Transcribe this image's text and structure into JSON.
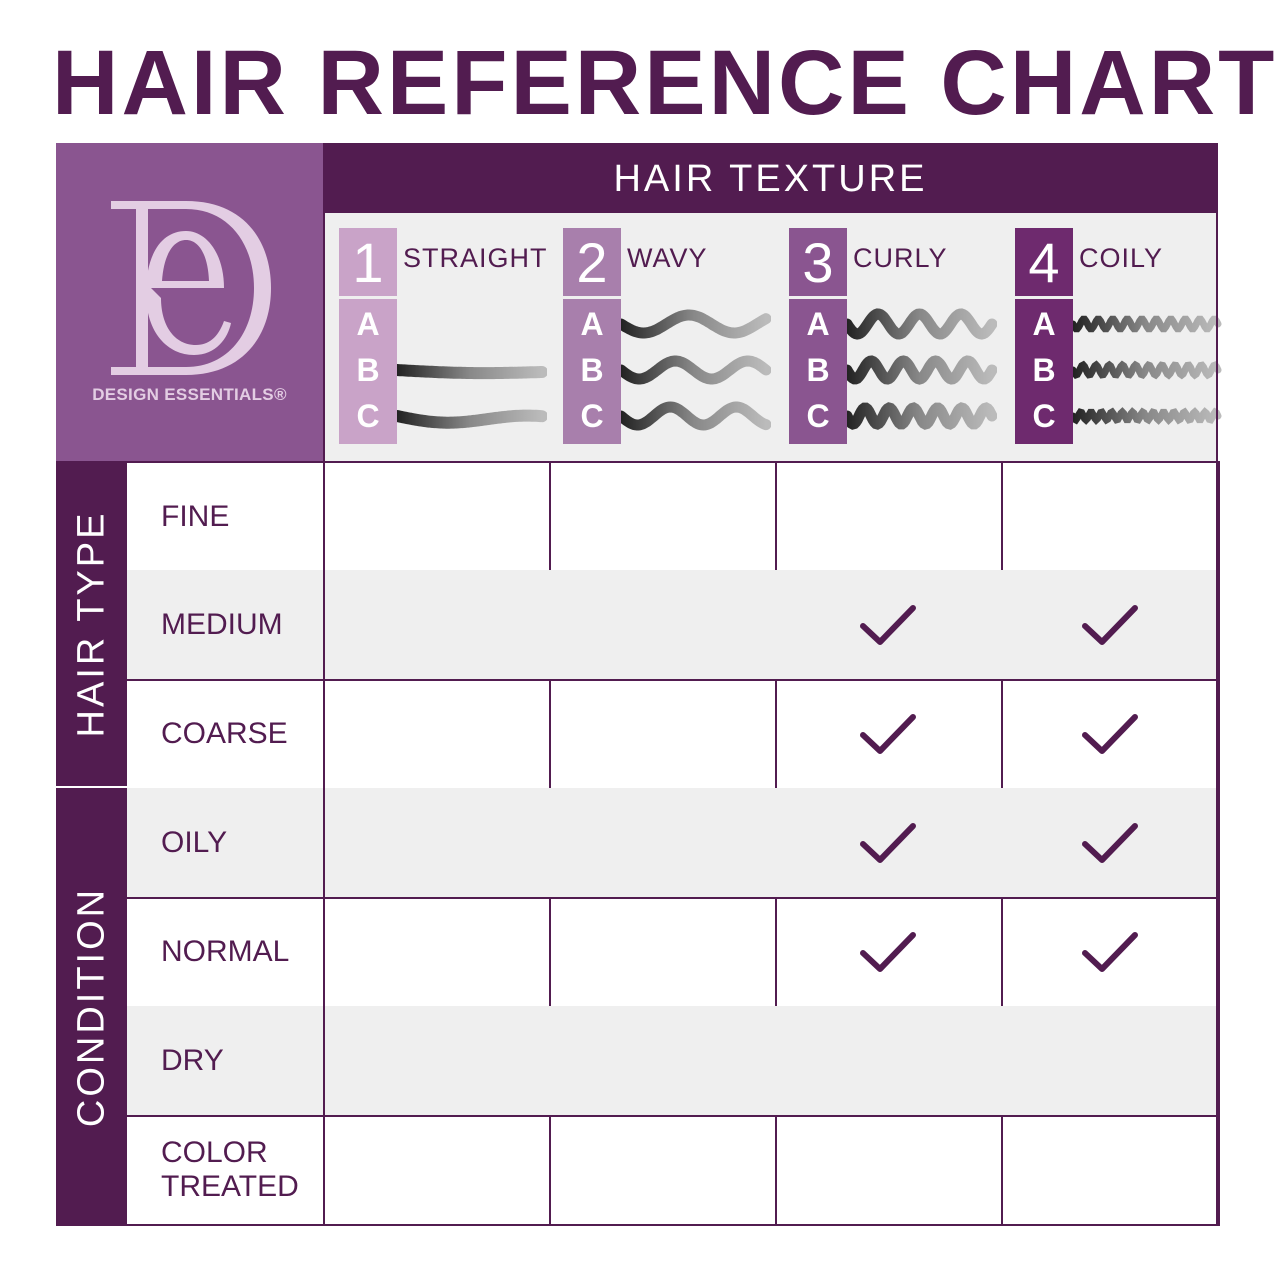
{
  "title": "HAIR REFERENCE CHART",
  "brand": {
    "name": "DESIGN ESSENTIALS®",
    "logo_letters": "DE"
  },
  "header": "HAIR TEXTURE",
  "textures": [
    {
      "number": "1",
      "name": "STRAIGHT",
      "subtypes": [
        "A",
        "B",
        "C"
      ],
      "color": "#c9a3c8",
      "strand_style": "straight"
    },
    {
      "number": "2",
      "name": "WAVY",
      "subtypes": [
        "A",
        "B",
        "C"
      ],
      "color": "#a87fac",
      "strand_style": "wavy"
    },
    {
      "number": "3",
      "name": "CURLY",
      "subtypes": [
        "A",
        "B",
        "C"
      ],
      "color": "#8a5590",
      "strand_style": "curly"
    },
    {
      "number": "4",
      "name": "COILY",
      "subtypes": [
        "A",
        "B",
        "C"
      ],
      "color": "#6e2a6e",
      "strand_style": "coily"
    }
  ],
  "groups": [
    {
      "label": "HAIR TYPE",
      "rows": [
        0,
        1,
        2
      ]
    },
    {
      "label": "CONDITION",
      "rows": [
        3,
        4,
        5,
        6
      ]
    }
  ],
  "rows": [
    {
      "label": "FINE",
      "checks": [
        false,
        false,
        false,
        false
      ]
    },
    {
      "label": "MEDIUM",
      "checks": [
        false,
        false,
        true,
        true
      ]
    },
    {
      "label": "COARSE",
      "checks": [
        false,
        false,
        true,
        true
      ]
    },
    {
      "label": "OILY",
      "checks": [
        false,
        false,
        true,
        true
      ]
    },
    {
      "label": "NORMAL",
      "checks": [
        false,
        false,
        true,
        true
      ]
    },
    {
      "label": "DRY",
      "checks": [
        false,
        false,
        false,
        false
      ]
    },
    {
      "label": "COLOR TREATED",
      "checks": [
        false,
        false,
        false,
        false
      ]
    }
  ],
  "colors": {
    "dark_purple": "#521c50",
    "logo_bg": "#8a5590",
    "cell_gray": "#efefef"
  }
}
